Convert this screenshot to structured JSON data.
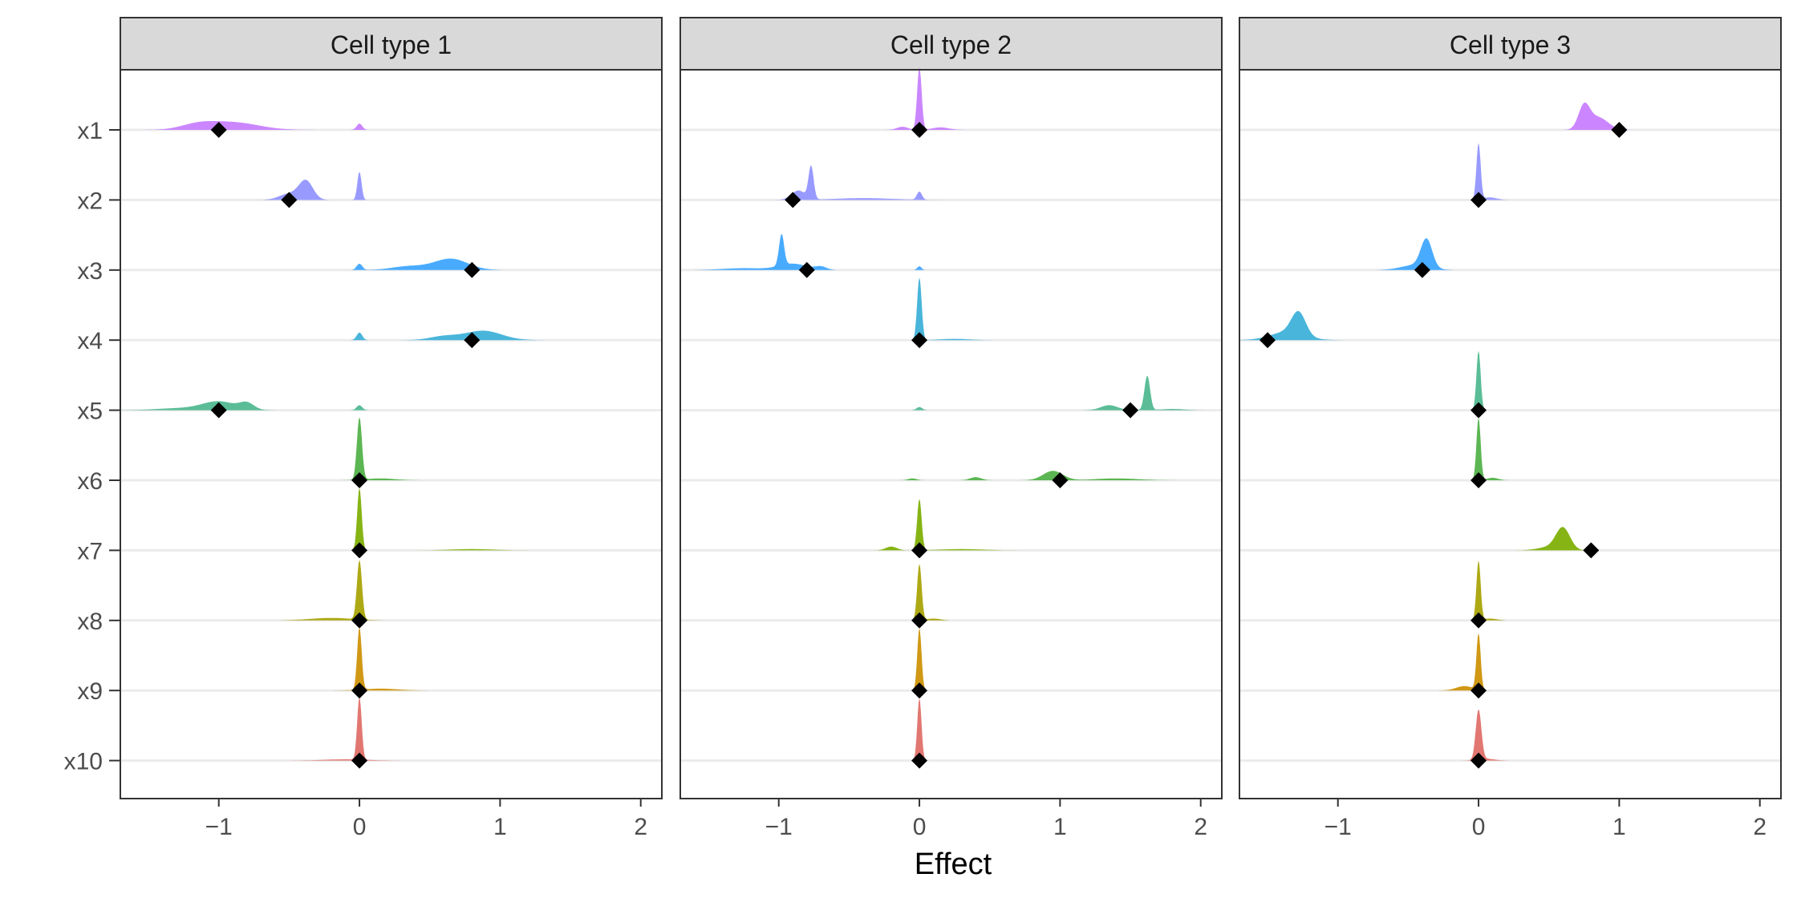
{
  "chart_data": {
    "type": "area",
    "xlabel": "Effect",
    "ylabel": "",
    "xlim": [
      -1.7,
      2.15
    ],
    "xticks": [
      -1,
      0,
      1,
      2
    ],
    "xtick_labels": [
      "−1",
      "0",
      "1",
      "2"
    ],
    "variables": [
      "x1",
      "x2",
      "x3",
      "x4",
      "x5",
      "x6",
      "x7",
      "x8",
      "x9",
      "x10"
    ],
    "grid": "horizontal baselines",
    "legend": "none",
    "colors": {
      "x1": "#C77CFF",
      "x2": "#8F91FF",
      "x3": "#39A4FF",
      "x4": "#3AAFD7",
      "x5": "#4CB78E",
      "x6": "#4EB044",
      "x7": "#7CAE00",
      "x8": "#A6A200",
      "x9": "#CC8F00",
      "x10": "#E06B65"
    },
    "panels": [
      {
        "title": "Cell type 1",
        "variables": [
          {
            "name": "x1",
            "true_value": -1.0,
            "peaks": [
              [
                -0.9,
                0.18,
                0.12
              ],
              [
                -1.15,
                0.12,
                0.08
              ],
              [
                0.0,
                0.02,
                0.1
              ]
            ]
          },
          {
            "name": "x2",
            "true_value": -0.5,
            "peaks": [
              [
                -0.38,
                0.05,
                0.3
              ],
              [
                -0.5,
                0.07,
                0.1
              ],
              [
                0.0,
                0.015,
                0.45
              ]
            ]
          },
          {
            "name": "x3",
            "true_value": 0.8,
            "peaks": [
              [
                0.65,
                0.12,
                0.18
              ],
              [
                0.35,
                0.12,
                0.06
              ],
              [
                0.0,
                0.02,
                0.1
              ]
            ]
          },
          {
            "name": "x4",
            "true_value": 0.8,
            "peaks": [
              [
                0.88,
                0.13,
                0.15
              ],
              [
                0.6,
                0.1,
                0.06
              ],
              [
                0.0,
                0.02,
                0.12
              ]
            ]
          },
          {
            "name": "x5",
            "true_value": -1.0,
            "peaks": [
              [
                -1.0,
                0.12,
                0.14
              ],
              [
                -0.8,
                0.05,
                0.1
              ],
              [
                -1.3,
                0.15,
                0.03
              ],
              [
                0.0,
                0.02,
                0.08
              ]
            ]
          },
          {
            "name": "x6",
            "true_value": 0.0,
            "peaks": [
              [
                0.0,
                0.018,
                1.0
              ],
              [
                0.15,
                0.1,
                0.03
              ]
            ]
          },
          {
            "name": "x7",
            "true_value": 0.0,
            "peaks": [
              [
                0.0,
                0.016,
                1.0
              ],
              [
                0.8,
                0.15,
                0.02
              ]
            ]
          },
          {
            "name": "x8",
            "true_value": 0.0,
            "peaks": [
              [
                0.0,
                0.018,
                0.95
              ],
              [
                -0.2,
                0.15,
                0.04
              ]
            ]
          },
          {
            "name": "x9",
            "true_value": 0.0,
            "peaks": [
              [
                0.0,
                0.016,
                1.0
              ],
              [
                0.15,
                0.12,
                0.03
              ]
            ]
          },
          {
            "name": "x10",
            "true_value": 0.0,
            "peaks": [
              [
                0.0,
                0.016,
                1.0
              ],
              [
                -0.1,
                0.15,
                0.02
              ]
            ]
          }
        ]
      },
      {
        "title": "Cell type 2",
        "variables": [
          {
            "name": "x1",
            "true_value": 0.0,
            "peaks": [
              [
                0.0,
                0.016,
                1.0
              ],
              [
                -0.12,
                0.04,
                0.05
              ],
              [
                0.15,
                0.06,
                0.04
              ]
            ]
          },
          {
            "name": "x2",
            "true_value": -0.9,
            "peaks": [
              [
                -0.77,
                0.018,
                0.52
              ],
              [
                -0.86,
                0.05,
                0.15
              ],
              [
                -0.4,
                0.2,
                0.03
              ],
              [
                0.0,
                0.018,
                0.13
              ]
            ]
          },
          {
            "name": "x3",
            "true_value": -0.8,
            "peaks": [
              [
                -0.98,
                0.018,
                0.5
              ],
              [
                -0.9,
                0.1,
                0.1
              ],
              [
                -1.25,
                0.15,
                0.03
              ],
              [
                -0.7,
                0.04,
                0.05
              ],
              [
                0.0,
                0.015,
                0.06
              ]
            ]
          },
          {
            "name": "x4",
            "true_value": 0.0,
            "peaks": [
              [
                0.0,
                0.016,
                1.0
              ],
              [
                0.25,
                0.1,
                0.02
              ]
            ]
          },
          {
            "name": "x5",
            "true_value": 1.5,
            "peaks": [
              [
                1.62,
                0.02,
                0.55
              ],
              [
                1.35,
                0.06,
                0.08
              ],
              [
                0.0,
                0.02,
                0.05
              ],
              [
                1.8,
                0.08,
                0.02
              ]
            ]
          },
          {
            "name": "x6",
            "true_value": 1.0,
            "peaks": [
              [
                0.95,
                0.07,
                0.15
              ],
              [
                0.4,
                0.04,
                0.05
              ],
              [
                1.4,
                0.15,
                0.03
              ],
              [
                -0.05,
                0.03,
                0.03
              ]
            ]
          },
          {
            "name": "x7",
            "true_value": 0.0,
            "peaks": [
              [
                0.0,
                0.016,
                0.82
              ],
              [
                -0.2,
                0.04,
                0.06
              ],
              [
                0.3,
                0.15,
                0.02
              ]
            ]
          },
          {
            "name": "x8",
            "true_value": 0.0,
            "peaks": [
              [
                0.0,
                0.016,
                0.9
              ],
              [
                0.1,
                0.05,
                0.03
              ]
            ]
          },
          {
            "name": "x9",
            "true_value": 0.0,
            "peaks": [
              [
                0.0,
                0.015,
                1.0
              ]
            ]
          },
          {
            "name": "x10",
            "true_value": 0.0,
            "peaks": [
              [
                0.0,
                0.015,
                1.0
              ]
            ]
          }
        ]
      },
      {
        "title": "Cell type 3",
        "variables": [
          {
            "name": "x1",
            "true_value": 1.0,
            "peaks": [
              [
                0.75,
                0.04,
                0.36
              ],
              [
                0.85,
                0.07,
                0.2
              ]
            ]
          },
          {
            "name": "x2",
            "true_value": 0.0,
            "peaks": [
              [
                0.0,
                0.015,
                0.9
              ],
              [
                0.08,
                0.05,
                0.04
              ]
            ]
          },
          {
            "name": "x3",
            "true_value": -0.4,
            "peaks": [
              [
                -0.37,
                0.04,
                0.45
              ],
              [
                -0.45,
                0.1,
                0.08
              ]
            ]
          },
          {
            "name": "x4",
            "true_value": -1.5,
            "peaks": [
              [
                -1.28,
                0.05,
                0.36
              ],
              [
                -1.36,
                0.12,
                0.13
              ]
            ]
          },
          {
            "name": "x5",
            "true_value": 0.0,
            "peaks": [
              [
                0.0,
                0.015,
                0.95
              ]
            ]
          },
          {
            "name": "x6",
            "true_value": 0.0,
            "peaks": [
              [
                0.0,
                0.015,
                1.0
              ],
              [
                0.1,
                0.04,
                0.04
              ]
            ]
          },
          {
            "name": "x7",
            "true_value": 0.8,
            "peaks": [
              [
                0.6,
                0.05,
                0.35
              ],
              [
                0.5,
                0.08,
                0.05
              ]
            ]
          },
          {
            "name": "x8",
            "true_value": 0.0,
            "peaks": [
              [
                0.0,
                0.015,
                0.95
              ],
              [
                0.08,
                0.05,
                0.03
              ]
            ]
          },
          {
            "name": "x9",
            "true_value": 0.0,
            "peaks": [
              [
                0.0,
                0.015,
                0.9
              ],
              [
                -0.1,
                0.06,
                0.07
              ]
            ]
          },
          {
            "name": "x10",
            "true_value": 0.0,
            "peaks": [
              [
                0.0,
                0.02,
                0.8
              ],
              [
                0.05,
                0.06,
                0.03
              ]
            ]
          }
        ]
      }
    ]
  }
}
